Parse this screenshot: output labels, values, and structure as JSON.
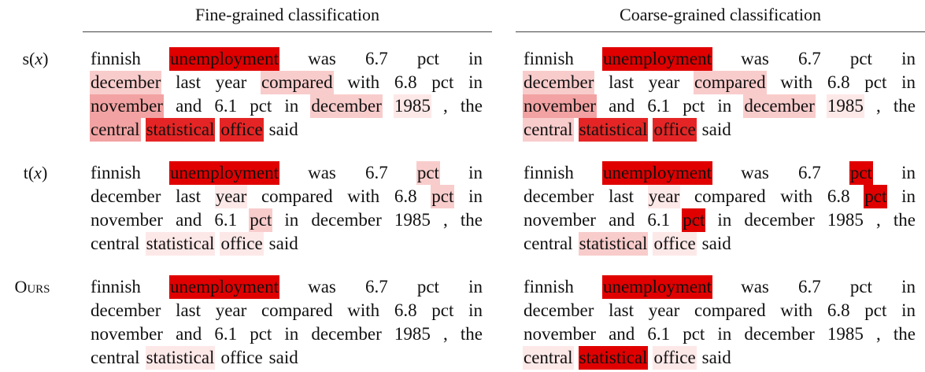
{
  "headers": {
    "fine": "Fine-grained classification",
    "coarse": "Coarse-grained classification"
  },
  "palette": {
    "w0": "transparent",
    "w1": "#fde8e8",
    "w2": "#f9cccc",
    "w3": "#f2a2a2",
    "w4": "#e52525",
    "w5": "#e00000"
  },
  "rows": [
    {
      "label_main": "s(",
      "label_var": "x",
      "label_end": ")",
      "fine": [
        [
          [
            "finnish",
            0
          ],
          [
            "unemployment",
            5
          ],
          [
            "was",
            0
          ],
          [
            "6.7",
            0
          ],
          [
            "pct",
            0
          ],
          [
            "in",
            0
          ]
        ],
        [
          [
            "december",
            2
          ],
          [
            "last",
            0
          ],
          [
            "year",
            0
          ],
          [
            "compared",
            2
          ],
          [
            "with",
            0
          ],
          [
            "6.8",
            0
          ],
          [
            "pct",
            0
          ],
          [
            "in",
            0
          ]
        ],
        [
          [
            "november",
            3
          ],
          [
            "and",
            0
          ],
          [
            "6.1",
            0
          ],
          [
            "pct",
            0
          ],
          [
            "in",
            0
          ],
          [
            "december",
            2
          ],
          [
            "1985",
            1
          ],
          [
            ",",
            0
          ],
          [
            "the",
            0
          ]
        ],
        [
          [
            "central",
            3
          ],
          [
            "statistical",
            4
          ],
          [
            "office",
            4
          ],
          [
            "said",
            0
          ]
        ]
      ],
      "coarse": [
        [
          [
            "finnish",
            0
          ],
          [
            "unemployment",
            5
          ],
          [
            "was",
            0
          ],
          [
            "6.7",
            0
          ],
          [
            "pct",
            0
          ],
          [
            "in",
            0
          ]
        ],
        [
          [
            "december",
            2
          ],
          [
            "last",
            0
          ],
          [
            "year",
            0
          ],
          [
            "compared",
            2
          ],
          [
            "with",
            0
          ],
          [
            "6.8",
            0
          ],
          [
            "pct",
            0
          ],
          [
            "in",
            0
          ]
        ],
        [
          [
            "november",
            3
          ],
          [
            "and",
            0
          ],
          [
            "6.1",
            0
          ],
          [
            "pct",
            0
          ],
          [
            "in",
            0
          ],
          [
            "december",
            2
          ],
          [
            "1985",
            1
          ],
          [
            ",",
            0
          ],
          [
            "the",
            0
          ]
        ],
        [
          [
            "central",
            2
          ],
          [
            "statistical",
            4
          ],
          [
            "office",
            4
          ],
          [
            "said",
            0
          ]
        ]
      ]
    },
    {
      "label_main": "t(",
      "label_var": "x",
      "label_end": ")",
      "fine": [
        [
          [
            "finnish",
            0
          ],
          [
            "unemployment",
            5
          ],
          [
            "was",
            0
          ],
          [
            "6.7",
            0
          ],
          [
            "pct",
            2
          ],
          [
            "in",
            0
          ]
        ],
        [
          [
            "december",
            0
          ],
          [
            "last",
            0
          ],
          [
            "year",
            1
          ],
          [
            "compared",
            0
          ],
          [
            "with",
            0
          ],
          [
            "6.8",
            0
          ],
          [
            "pct",
            2
          ],
          [
            "in",
            0
          ]
        ],
        [
          [
            "november",
            0
          ],
          [
            "and",
            0
          ],
          [
            "6.1",
            0
          ],
          [
            "pct",
            2
          ],
          [
            "in",
            0
          ],
          [
            "december",
            0
          ],
          [
            "1985",
            0
          ],
          [
            ",",
            0
          ],
          [
            "the",
            0
          ]
        ],
        [
          [
            "central",
            0
          ],
          [
            "statistical",
            1
          ],
          [
            "office",
            1
          ],
          [
            "said",
            0
          ]
        ]
      ],
      "coarse": [
        [
          [
            "finnish",
            0
          ],
          [
            "unemployment",
            5
          ],
          [
            "was",
            0
          ],
          [
            "6.7",
            0
          ],
          [
            "pct",
            5
          ],
          [
            "in",
            0
          ]
        ],
        [
          [
            "december",
            0
          ],
          [
            "last",
            0
          ],
          [
            "year",
            1
          ],
          [
            "compared",
            0
          ],
          [
            "with",
            0
          ],
          [
            "6.8",
            0
          ],
          [
            "pct",
            5
          ],
          [
            "in",
            0
          ]
        ],
        [
          [
            "november",
            0
          ],
          [
            "and",
            0
          ],
          [
            "6.1",
            0
          ],
          [
            "pct",
            5
          ],
          [
            "in",
            0
          ],
          [
            "december",
            0
          ],
          [
            "1985",
            0
          ],
          [
            ",",
            0
          ],
          [
            "the",
            0
          ]
        ],
        [
          [
            "central",
            0
          ],
          [
            "statistical",
            2
          ],
          [
            "office",
            1
          ],
          [
            "said",
            0
          ]
        ]
      ]
    },
    {
      "label_main": "Ours",
      "label_var": "",
      "label_end": "",
      "fine": [
        [
          [
            "finnish",
            0
          ],
          [
            "unemployment",
            5
          ],
          [
            "was",
            0
          ],
          [
            "6.7",
            0
          ],
          [
            "pct",
            0
          ],
          [
            "in",
            0
          ]
        ],
        [
          [
            "december",
            0
          ],
          [
            "last",
            0
          ],
          [
            "year",
            0
          ],
          [
            "compared",
            0
          ],
          [
            "with",
            0
          ],
          [
            "6.8",
            0
          ],
          [
            "pct",
            0
          ],
          [
            "in",
            0
          ]
        ],
        [
          [
            "november",
            0
          ],
          [
            "and",
            0
          ],
          [
            "6.1",
            0
          ],
          [
            "pct",
            0
          ],
          [
            "in",
            0
          ],
          [
            "december",
            0
          ],
          [
            "1985",
            0
          ],
          [
            ",",
            0
          ],
          [
            "the",
            0
          ]
        ],
        [
          [
            "central",
            0
          ],
          [
            "statistical",
            1
          ],
          [
            "office",
            0
          ],
          [
            "said",
            0
          ]
        ]
      ],
      "coarse": [
        [
          [
            "finnish",
            0
          ],
          [
            "unemployment",
            5
          ],
          [
            "was",
            0
          ],
          [
            "6.7",
            0
          ],
          [
            "pct",
            0
          ],
          [
            "in",
            0
          ]
        ],
        [
          [
            "december",
            0
          ],
          [
            "last",
            0
          ],
          [
            "year",
            0
          ],
          [
            "compared",
            0
          ],
          [
            "with",
            0
          ],
          [
            "6.8",
            0
          ],
          [
            "pct",
            0
          ],
          [
            "in",
            0
          ]
        ],
        [
          [
            "november",
            0
          ],
          [
            "and",
            0
          ],
          [
            "6.1",
            0
          ],
          [
            "pct",
            0
          ],
          [
            "in",
            0
          ],
          [
            "december",
            0
          ],
          [
            "1985",
            0
          ],
          [
            ",",
            0
          ],
          [
            "the",
            0
          ]
        ],
        [
          [
            "central",
            1
          ],
          [
            "statistical",
            5
          ],
          [
            "office",
            1
          ],
          [
            "said",
            0
          ]
        ]
      ]
    }
  ]
}
